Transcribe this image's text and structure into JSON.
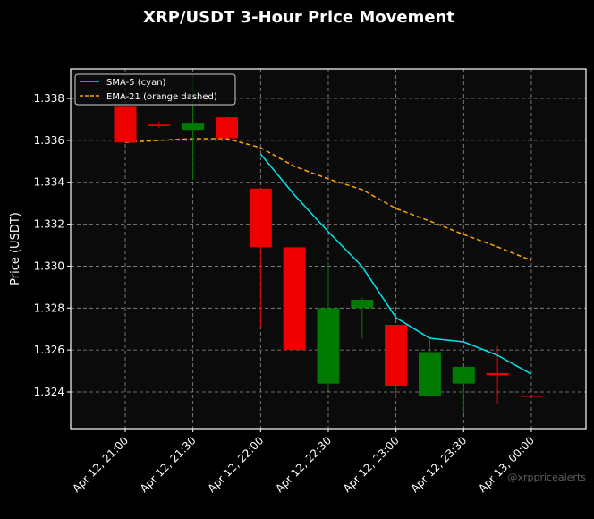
{
  "chart_data": {
    "type": "candlestick",
    "title": "XRP/USDT 3-Hour Price Movement",
    "ylabel": "Price (USDT)",
    "xlabel": "",
    "ylim": [
      1.32225,
      1.33941
    ],
    "grid": true,
    "legend_position": "top-left",
    "watermark": "@xrppricealerts",
    "x": [
      "21:00",
      "21:15",
      "21:30",
      "21:45",
      "22:00",
      "22:15",
      "22:30",
      "22:45",
      "23:00",
      "23:15",
      "23:30",
      "23:45",
      "00:00"
    ],
    "xticks": [
      "Apr 12, 21:00",
      "Apr 12, 21:30",
      "Apr 12, 22:00",
      "Apr 12, 22:30",
      "Apr 12, 23:00",
      "Apr 12, 23:30",
      "Apr 13, 00:00"
    ],
    "xtick_index": [
      0,
      2,
      4,
      6,
      8,
      10,
      12
    ],
    "yticks": [
      1.324,
      1.326,
      1.328,
      1.33,
      1.332,
      1.334,
      1.336,
      1.338
    ],
    "candles": [
      {
        "o": 1.3376,
        "h": 1.3376,
        "l": 1.3359,
        "c": 1.3359
      },
      {
        "o": 1.33675,
        "h": 1.3369,
        "l": 1.3366,
        "c": 1.33668
      },
      {
        "o": 1.3365,
        "h": 1.3389,
        "l": 1.3341,
        "c": 1.3368
      },
      {
        "o": 1.3371,
        "h": 1.3371,
        "l": 1.3361,
        "c": 1.3361
      },
      {
        "o": 1.3337,
        "h": 1.3337,
        "l": 1.3271,
        "c": 1.3309
      },
      {
        "o": 1.3309,
        "h": 1.3309,
        "l": 1.326,
        "c": 1.326
      },
      {
        "o": 1.3244,
        "h": 1.3302,
        "l": 1.3241,
        "c": 1.328
      },
      {
        "o": 1.328,
        "h": 1.3285,
        "l": 1.32655,
        "c": 1.3284
      },
      {
        "o": 1.3272,
        "h": 1.3272,
        "l": 1.3237,
        "c": 1.3243
      },
      {
        "o": 1.3238,
        "h": 1.3265,
        "l": 1.3238,
        "c": 1.3259
      },
      {
        "o": 1.3244,
        "h": 1.3252,
        "l": 1.323,
        "c": 1.3252
      },
      {
        "o": 1.3249,
        "h": 1.3262,
        "l": 1.3234,
        "c": 1.3248
      },
      {
        "o": 1.32383,
        "h": 1.32383,
        "l": 1.32382,
        "c": 1.32382
      }
    ],
    "series": [
      {
        "name": "SMA-5 (cyan)",
        "color": "#00e5ee",
        "dashed": false,
        "values": [
          null,
          null,
          null,
          null,
          1.33535,
          1.33339,
          1.33164,
          1.32998,
          1.32754,
          1.32656,
          1.32639,
          1.32575,
          1.32485
        ]
      },
      {
        "name": "EMA-21 (orange dashed)",
        "color": "#ffa500",
        "dashed": true,
        "values": [
          1.3359,
          1.336,
          1.33608,
          1.33608,
          1.33565,
          1.33476,
          1.33416,
          1.33365,
          1.33275,
          1.33215,
          1.33151,
          1.33092,
          1.33027
        ]
      }
    ],
    "colors": {
      "up": "#007a00",
      "down": "#ee0000",
      "background": "#0b0b0b",
      "figure": "#000000",
      "grid": "#b0b0b0"
    }
  }
}
